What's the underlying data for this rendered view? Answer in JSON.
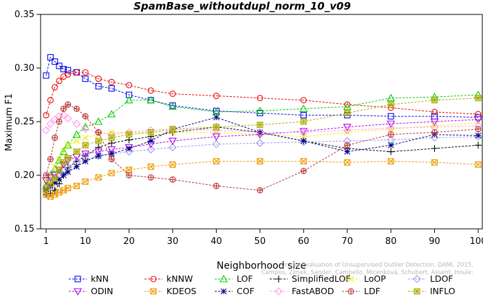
{
  "chart_data": {
    "type": "line",
    "title": "SpamBase_withoutdupl_norm_10_v09",
    "xlabel": "Neighborhood size",
    "ylabel": "Maximum F1",
    "xlim": [
      1,
      100
    ],
    "ylim": [
      0.15,
      0.35
    ],
    "x_ticks": [
      1,
      10,
      20,
      30,
      40,
      50,
      60,
      70,
      80,
      90,
      100
    ],
    "y_ticks": [
      0.15,
      0.2,
      0.25,
      0.3,
      0.35
    ],
    "x_tick_labels": [
      "1",
      "10",
      "20",
      "30",
      "40",
      "50",
      "60",
      "70",
      "80",
      "90",
      "100"
    ],
    "y_tick_labels": [
      "0.15",
      "0.20",
      "0.25",
      "0.30",
      "0.35"
    ],
    "grid": false,
    "legend_position": "bottom",
    "watermark": "Campos, Zimek, Sander, Campello, Micenková, Schubert, Assent, Houle: On the Evaluation of Unsupervised Outlier Detection. DAMI, 2015.",
    "series": [
      {
        "name": "kNN",
        "color": "#0000ee",
        "marker": "square",
        "x": [
          1,
          2,
          3,
          4,
          5,
          6,
          8,
          10,
          13,
          16,
          20,
          25,
          30,
          40,
          50,
          60,
          70,
          80,
          90,
          100
        ],
        "y": [
          0.293,
          0.31,
          0.306,
          0.302,
          0.299,
          0.298,
          0.296,
          0.29,
          0.283,
          0.281,
          0.275,
          0.27,
          0.265,
          0.26,
          0.258,
          0.256,
          0.256,
          0.255,
          0.255,
          0.254
        ]
      },
      {
        "name": "kNNW",
        "color": "#ee0000",
        "marker": "circle",
        "x": [
          1,
          2,
          3,
          4,
          5,
          6,
          8,
          10,
          13,
          16,
          20,
          25,
          30,
          40,
          50,
          60,
          70,
          80,
          90,
          100
        ],
        "y": [
          0.256,
          0.27,
          0.282,
          0.288,
          0.292,
          0.294,
          0.296,
          0.296,
          0.29,
          0.287,
          0.284,
          0.279,
          0.276,
          0.274,
          0.272,
          0.27,
          0.266,
          0.263,
          0.259,
          0.257
        ]
      },
      {
        "name": "LOF",
        "color": "#00cc00",
        "marker": "triangle-up",
        "x": [
          1,
          2,
          3,
          4,
          5,
          6,
          8,
          10,
          13,
          16,
          20,
          25,
          30,
          40,
          50,
          60,
          70,
          80,
          90,
          100
        ],
        "y": [
          0.19,
          0.2,
          0.206,
          0.214,
          0.222,
          0.228,
          0.238,
          0.245,
          0.25,
          0.257,
          0.27,
          0.27,
          0.264,
          0.259,
          0.26,
          0.262,
          0.264,
          0.272,
          0.273,
          0.275
        ]
      },
      {
        "name": "SimplifiedLOF",
        "color": "#000000",
        "marker": "plus",
        "x": [
          1,
          2,
          3,
          4,
          5,
          6,
          8,
          10,
          13,
          16,
          20,
          25,
          30,
          40,
          50,
          60,
          70,
          80,
          90,
          100
        ],
        "y": [
          0.182,
          0.183,
          0.186,
          0.192,
          0.2,
          0.207,
          0.213,
          0.218,
          0.226,
          0.23,
          0.233,
          0.236,
          0.24,
          0.245,
          0.24,
          0.232,
          0.225,
          0.222,
          0.225,
          0.228
        ]
      },
      {
        "name": "LoOP",
        "color": "#eeee00",
        "marker": "x",
        "x": [
          1,
          2,
          3,
          4,
          5,
          6,
          8,
          10,
          13,
          16,
          20,
          25,
          30,
          40,
          50,
          60,
          70,
          80,
          90,
          100
        ],
        "y": [
          0.195,
          0.2,
          0.208,
          0.215,
          0.223,
          0.228,
          0.232,
          0.235,
          0.238,
          0.24,
          0.24,
          0.24,
          0.24,
          0.24,
          0.238,
          0.236,
          0.24,
          0.243,
          0.246,
          0.249
        ]
      },
      {
        "name": "LDOF",
        "color": "#9999ee",
        "marker": "diamond",
        "x": [
          1,
          2,
          3,
          4,
          5,
          6,
          8,
          10,
          13,
          16,
          20,
          25,
          30,
          40,
          50,
          60,
          70,
          80,
          90,
          100
        ],
        "y": [
          0.186,
          0.19,
          0.195,
          0.2,
          0.205,
          0.208,
          0.212,
          0.215,
          0.218,
          0.22,
          0.222,
          0.224,
          0.226,
          0.229,
          0.23,
          0.231,
          0.232,
          0.233,
          0.235,
          0.236
        ]
      },
      {
        "name": "ODIN",
        "color": "#aa00ee",
        "marker": "triangle-down",
        "x": [
          1,
          2,
          3,
          4,
          5,
          6,
          8,
          10,
          13,
          16,
          20,
          25,
          30,
          40,
          50,
          60,
          70,
          80,
          90,
          100
        ],
        "y": [
          0.195,
          0.198,
          0.2,
          0.205,
          0.21,
          0.214,
          0.217,
          0.22,
          0.222,
          0.224,
          0.226,
          0.229,
          0.232,
          0.236,
          0.238,
          0.241,
          0.245,
          0.248,
          0.25,
          0.252
        ]
      },
      {
        "name": "KDEOS",
        "color": "#ee9900",
        "marker": "square-x",
        "x": [
          1,
          2,
          3,
          4,
          5,
          6,
          8,
          10,
          13,
          16,
          20,
          25,
          30,
          40,
          50,
          60,
          70,
          80,
          90,
          100
        ],
        "y": [
          0.182,
          0.18,
          0.182,
          0.184,
          0.186,
          0.188,
          0.19,
          0.194,
          0.198,
          0.202,
          0.205,
          0.208,
          0.21,
          0.213,
          0.213,
          0.213,
          0.212,
          0.213,
          0.212,
          0.21
        ]
      },
      {
        "name": "COF",
        "color": "#000088",
        "marker": "asterisk",
        "x": [
          1,
          2,
          3,
          4,
          5,
          6,
          8,
          10,
          13,
          16,
          20,
          25,
          30,
          40,
          50,
          60,
          70,
          80,
          90,
          100
        ],
        "y": [
          0.187,
          0.19,
          0.193,
          0.196,
          0.2,
          0.203,
          0.208,
          0.213,
          0.218,
          0.22,
          0.225,
          0.232,
          0.243,
          0.254,
          0.24,
          0.232,
          0.222,
          0.228,
          0.238,
          0.237
        ]
      },
      {
        "name": "FastABOD",
        "color": "#ff99ee",
        "marker": "diamond",
        "x": [
          1,
          2,
          3,
          4,
          5,
          6,
          8,
          10,
          13,
          16,
          20,
          25,
          30,
          40,
          50,
          60,
          70,
          80,
          90,
          100
        ],
        "y": [
          0.242,
          0.248,
          0.252,
          0.255,
          0.256,
          0.253,
          0.248,
          0.243,
          0.24,
          0.238,
          0.24,
          0.242,
          0.243,
          0.242,
          0.24,
          0.24,
          0.242,
          0.244,
          0.245,
          0.246
        ]
      },
      {
        "name": "LDF",
        "color": "#bb3333",
        "marker": "circle-plus",
        "x": [
          1,
          2,
          3,
          4,
          5,
          6,
          8,
          10,
          13,
          16,
          20,
          25,
          30,
          40,
          50,
          60,
          70,
          80,
          90,
          100
        ],
        "y": [
          0.2,
          0.215,
          0.235,
          0.25,
          0.262,
          0.266,
          0.262,
          0.255,
          0.24,
          0.215,
          0.2,
          0.198,
          0.196,
          0.19,
          0.186,
          0.204,
          0.228,
          0.238,
          0.24,
          0.243
        ]
      },
      {
        "name": "INFLO",
        "color": "#aaaa00",
        "marker": "star-box",
        "x": [
          1,
          2,
          3,
          4,
          5,
          6,
          8,
          10,
          13,
          16,
          20,
          25,
          30,
          40,
          50,
          60,
          70,
          80,
          90,
          100
        ],
        "y": [
          0.188,
          0.192,
          0.197,
          0.205,
          0.212,
          0.216,
          0.222,
          0.228,
          0.232,
          0.235,
          0.238,
          0.24,
          0.243,
          0.245,
          0.247,
          0.25,
          0.258,
          0.266,
          0.27,
          0.272
        ]
      }
    ]
  }
}
